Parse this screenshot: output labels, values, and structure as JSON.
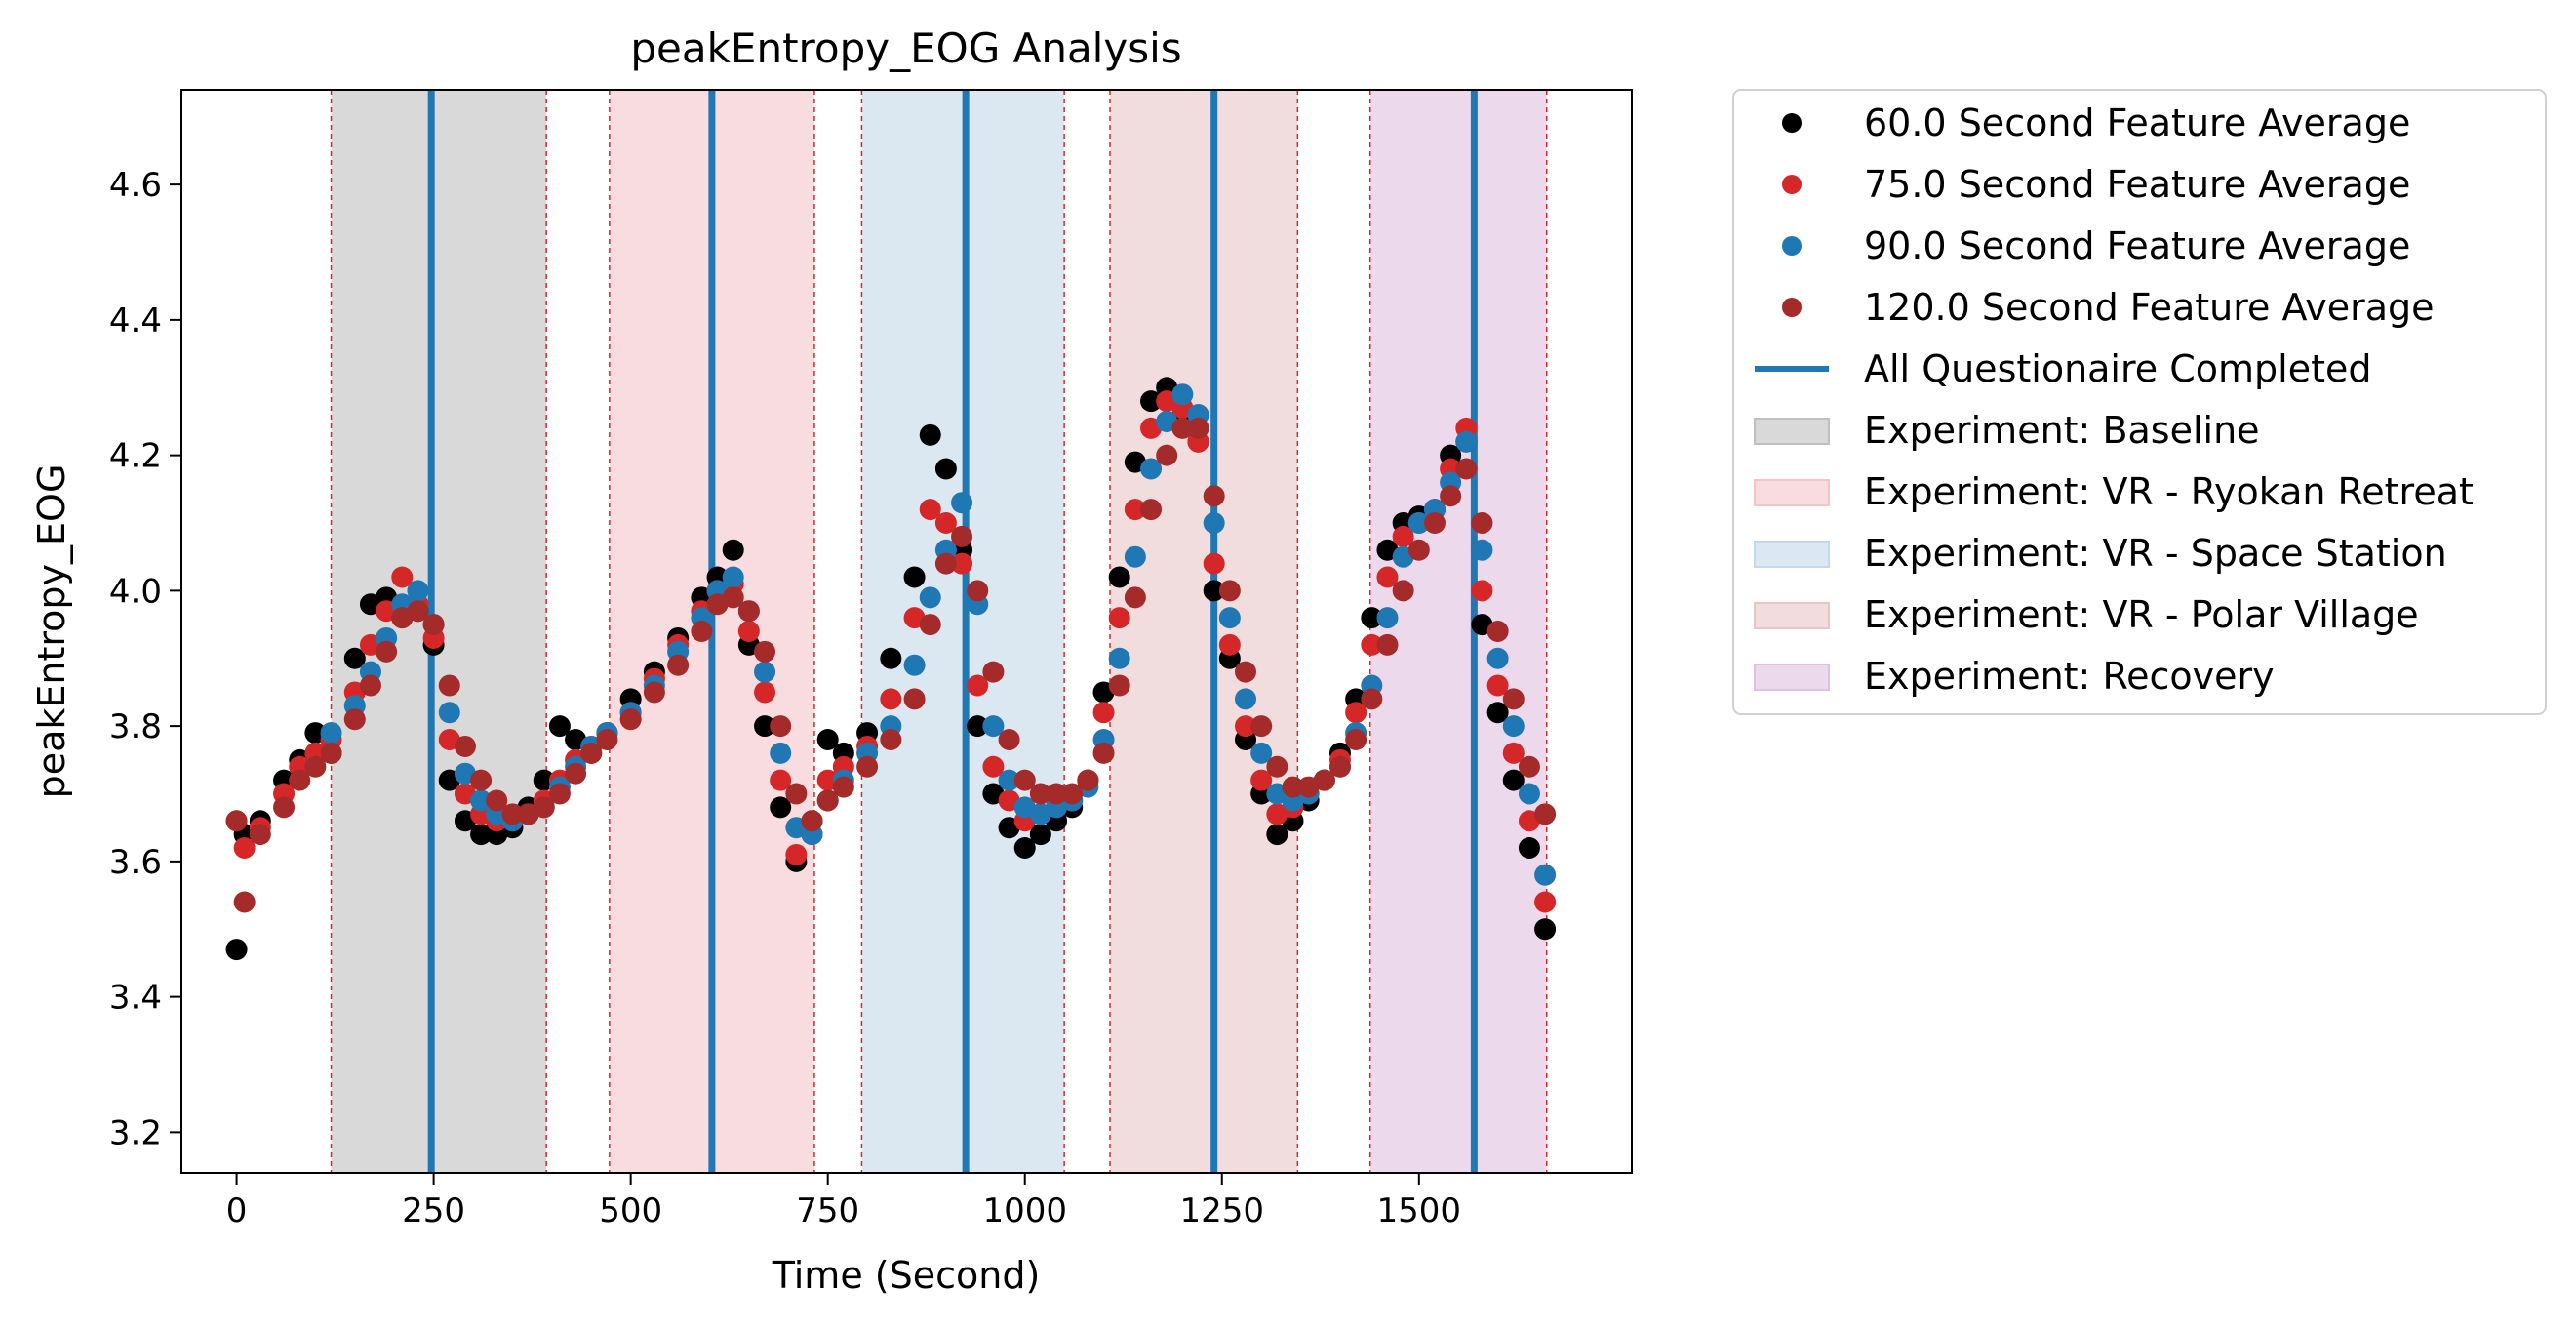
{
  "chart_data": {
    "type": "scatter",
    "title": "peakEntropy_EOG Analysis",
    "xlabel": "Time (Second)",
    "ylabel": "peakEntropy_EOG",
    "xlim": [
      -70,
      1770
    ],
    "ylim": [
      3.14,
      4.74
    ],
    "xticks": [
      {
        "value": 0,
        "label": "0"
      },
      {
        "value": 250,
        "label": "250"
      },
      {
        "value": 500,
        "label": "500"
      },
      {
        "value": 750,
        "label": "750"
      },
      {
        "value": 1000,
        "label": "1000"
      },
      {
        "value": 1250,
        "label": "1250"
      },
      {
        "value": 1500,
        "label": "1500"
      }
    ],
    "yticks": [
      {
        "value": 3.2,
        "label": "3.2"
      },
      {
        "value": 3.4,
        "label": "3.4"
      },
      {
        "value": 3.6,
        "label": "3.6"
      },
      {
        "value": 3.8,
        "label": "3.8"
      },
      {
        "value": 4.0,
        "label": "4.0"
      },
      {
        "value": 4.2,
        "label": "4.2"
      },
      {
        "value": 4.4,
        "label": "4.4"
      },
      {
        "value": 4.6,
        "label": "4.6"
      }
    ],
    "grid": false,
    "legend_position": "outside-right-top",
    "phases": [
      {
        "name": "Experiment: Baseline",
        "start": 120,
        "end": 393,
        "color": "#bfbfbf"
      },
      {
        "name": "Experiment: VR - Ryokan Retreat",
        "start": 473,
        "end": 733,
        "color": "#f3c5ca"
      },
      {
        "name": "Experiment: VR - Space Station",
        "start": 793,
        "end": 1050,
        "color": "#c3d9ea"
      },
      {
        "name": "Experiment: VR - Polar Village",
        "start": 1108,
        "end": 1346,
        "color": "#e8c6c6"
      },
      {
        "name": "Experiment: Recovery",
        "start": 1438,
        "end": 1662,
        "color": "#dfc0df"
      }
    ],
    "questionnaire_times": [
      247,
      603,
      925,
      1240,
      1570
    ],
    "questionnaire_label": "All Questionaire Completed",
    "questionnaire_color": "#1f77b4",
    "series": [
      {
        "name": "60.0 Second Feature Average",
        "color": "#000000",
        "x": [
          0,
          10,
          30,
          60,
          80,
          100,
          120,
          150,
          170,
          190,
          210,
          230,
          250,
          270,
          290,
          310,
          330,
          350,
          370,
          390,
          410,
          430,
          450,
          470,
          500,
          530,
          560,
          590,
          610,
          630,
          650,
          670,
          690,
          710,
          730,
          750,
          770,
          800,
          830,
          860,
          880,
          900,
          920,
          940,
          960,
          980,
          1000,
          1020,
          1040,
          1060,
          1080,
          1100,
          1120,
          1140,
          1160,
          1180,
          1200,
          1220,
          1240,
          1260,
          1280,
          1300,
          1320,
          1340,
          1360,
          1380,
          1400,
          1420,
          1440,
          1460,
          1480,
          1500,
          1520,
          1540,
          1560,
          1580,
          1600,
          1620,
          1640,
          1660
        ],
        "y": [
          3.47,
          3.64,
          3.66,
          3.72,
          3.75,
          3.79,
          3.76,
          3.9,
          3.98,
          3.99,
          3.96,
          3.97,
          3.92,
          3.72,
          3.66,
          3.64,
          3.64,
          3.65,
          3.68,
          3.72,
          3.8,
          3.78,
          3.76,
          3.79,
          3.84,
          3.88,
          3.93,
          3.99,
          4.02,
          4.06,
          3.92,
          3.8,
          3.68,
          3.6,
          3.66,
          3.78,
          3.76,
          3.79,
          3.9,
          4.02,
          4.23,
          4.18,
          4.06,
          3.8,
          3.7,
          3.65,
          3.62,
          3.64,
          3.66,
          3.68,
          3.72,
          3.85,
          4.02,
          4.19,
          4.28,
          4.3,
          4.26,
          4.22,
          4.0,
          3.9,
          3.78,
          3.7,
          3.64,
          3.66,
          3.69,
          3.72,
          3.76,
          3.84,
          3.96,
          4.06,
          4.1,
          4.11,
          4.12,
          4.2,
          4.22,
          3.95,
          3.82,
          3.72,
          3.62,
          3.5
        ]
      },
      {
        "name": "75.0 Second Feature Average",
        "color": "#d62728",
        "x": [
          0,
          10,
          30,
          60,
          80,
          100,
          120,
          150,
          170,
          190,
          210,
          230,
          250,
          270,
          290,
          310,
          330,
          350,
          370,
          390,
          410,
          430,
          450,
          470,
          500,
          530,
          560,
          590,
          610,
          630,
          650,
          670,
          690,
          710,
          730,
          750,
          770,
          800,
          830,
          860,
          880,
          900,
          920,
          940,
          960,
          980,
          1000,
          1020,
          1040,
          1060,
          1080,
          1100,
          1120,
          1140,
          1160,
          1180,
          1200,
          1220,
          1240,
          1260,
          1280,
          1300,
          1320,
          1340,
          1360,
          1380,
          1400,
          1420,
          1440,
          1460,
          1480,
          1500,
          1520,
          1540,
          1560,
          1580,
          1600,
          1620,
          1640,
          1660
        ],
        "y": [
          3.66,
          3.62,
          3.65,
          3.7,
          3.74,
          3.76,
          3.78,
          3.85,
          3.92,
          3.97,
          4.02,
          3.98,
          3.93,
          3.78,
          3.7,
          3.67,
          3.66,
          3.66,
          3.67,
          3.69,
          3.72,
          3.75,
          3.77,
          3.79,
          3.82,
          3.87,
          3.92,
          3.97,
          4.0,
          4.01,
          3.94,
          3.85,
          3.72,
          3.61,
          3.64,
          3.72,
          3.74,
          3.77,
          3.84,
          3.96,
          4.12,
          4.1,
          4.04,
          3.86,
          3.74,
          3.69,
          3.66,
          3.67,
          3.68,
          3.69,
          3.72,
          3.82,
          3.96,
          4.12,
          4.24,
          4.28,
          4.27,
          4.22,
          4.04,
          3.92,
          3.8,
          3.72,
          3.67,
          3.68,
          3.7,
          3.72,
          3.75,
          3.82,
          3.92,
          4.02,
          4.08,
          4.1,
          4.12,
          4.18,
          4.24,
          4.0,
          3.86,
          3.76,
          3.66,
          3.54
        ]
      },
      {
        "name": "90.0 Second Feature Average",
        "color": "#1f77b4",
        "x": [
          120,
          150,
          170,
          190,
          210,
          230,
          250,
          270,
          290,
          310,
          330,
          350,
          370,
          390,
          410,
          430,
          450,
          470,
          500,
          530,
          560,
          590,
          610,
          630,
          650,
          670,
          690,
          710,
          730,
          750,
          770,
          800,
          830,
          860,
          880,
          900,
          920,
          940,
          960,
          980,
          1000,
          1020,
          1040,
          1060,
          1080,
          1100,
          1120,
          1140,
          1160,
          1180,
          1200,
          1220,
          1240,
          1260,
          1280,
          1300,
          1320,
          1340,
          1360,
          1380,
          1400,
          1420,
          1440,
          1460,
          1480,
          1500,
          1520,
          1540,
          1560,
          1580,
          1600,
          1620,
          1640,
          1660
        ],
        "y": [
          3.79,
          3.83,
          3.88,
          3.93,
          3.98,
          4.0,
          3.95,
          3.82,
          3.73,
          3.69,
          3.67,
          3.66,
          3.67,
          3.68,
          3.71,
          3.74,
          3.77,
          3.79,
          3.82,
          3.86,
          3.91,
          3.96,
          4.0,
          4.02,
          3.97,
          3.88,
          3.76,
          3.65,
          3.64,
          3.69,
          3.72,
          3.76,
          3.8,
          3.89,
          3.99,
          4.06,
          4.13,
          3.98,
          3.8,
          3.72,
          3.68,
          3.67,
          3.68,
          3.69,
          3.71,
          3.78,
          3.9,
          4.05,
          4.18,
          4.25,
          4.29,
          4.26,
          4.1,
          3.96,
          3.84,
          3.76,
          3.7,
          3.69,
          3.7,
          3.72,
          3.74,
          3.79,
          3.86,
          3.96,
          4.05,
          4.1,
          4.12,
          4.16,
          4.22,
          4.06,
          3.9,
          3.8,
          3.7,
          3.58
        ]
      },
      {
        "name": "120.0 Second Feature Average",
        "color": "#a52a2a",
        "x": [
          0,
          10,
          30,
          60,
          80,
          100,
          120,
          150,
          170,
          190,
          210,
          230,
          250,
          270,
          290,
          310,
          330,
          350,
          370,
          390,
          410,
          430,
          450,
          470,
          500,
          530,
          560,
          590,
          610,
          630,
          650,
          670,
          690,
          710,
          730,
          750,
          770,
          800,
          830,
          860,
          880,
          900,
          920,
          940,
          960,
          980,
          1000,
          1020,
          1040,
          1060,
          1080,
          1100,
          1120,
          1140,
          1160,
          1180,
          1200,
          1220,
          1240,
          1260,
          1280,
          1300,
          1320,
          1340,
          1360,
          1380,
          1400,
          1420,
          1440,
          1460,
          1480,
          1500,
          1520,
          1540,
          1560,
          1580,
          1600,
          1620,
          1640,
          1660
        ],
        "y": [
          3.66,
          3.54,
          3.64,
          3.68,
          3.72,
          3.74,
          3.76,
          3.81,
          3.86,
          3.91,
          3.96,
          3.97,
          3.95,
          3.86,
          3.77,
          3.72,
          3.69,
          3.67,
          3.67,
          3.68,
          3.7,
          3.73,
          3.76,
          3.78,
          3.81,
          3.85,
          3.89,
          3.94,
          3.98,
          3.99,
          3.97,
          3.91,
          3.8,
          3.7,
          3.66,
          3.69,
          3.71,
          3.74,
          3.78,
          3.84,
          3.95,
          4.04,
          4.08,
          4.0,
          3.88,
          3.78,
          3.72,
          3.7,
          3.7,
          3.7,
          3.72,
          3.76,
          3.86,
          3.99,
          4.12,
          4.2,
          4.24,
          4.24,
          4.14,
          4.0,
          3.88,
          3.8,
          3.74,
          3.71,
          3.71,
          3.72,
          3.74,
          3.78,
          3.84,
          3.92,
          4.0,
          4.06,
          4.1,
          4.14,
          4.18,
          4.1,
          3.94,
          3.84,
          3.74,
          3.67
        ]
      }
    ]
  }
}
